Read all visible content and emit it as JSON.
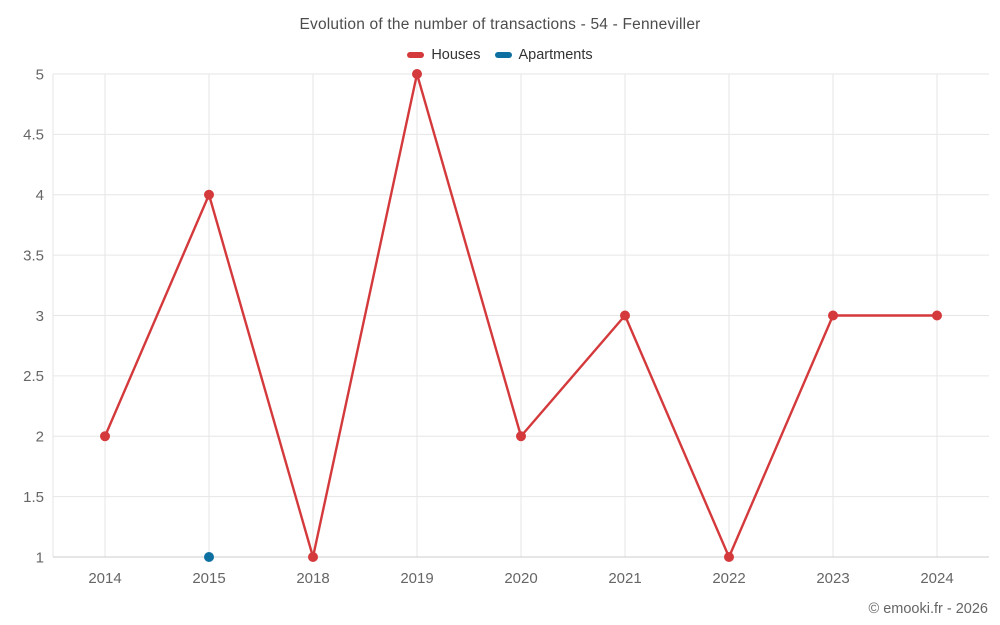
{
  "header": {
    "title": "Evolution of the number of transactions - 54 - Fenneviller"
  },
  "footer": {
    "copyright": "© emooki.fr - 2026"
  },
  "colors": {
    "houses": "#d4393c",
    "apartments": "#0e70a0",
    "gridline": "#e6e6e6",
    "axis_line": "#cccccc",
    "tick_label": "#666666",
    "title_text": "#4d4d4d",
    "legend_text": "#333333",
    "background": "#ffffff"
  },
  "chart_data": {
    "type": "line",
    "title": "Evolution of the number of transactions - 54 - Fenneviller",
    "categories": [
      "2014",
      "2015",
      "2018",
      "2019",
      "2020",
      "2021",
      "2022",
      "2023",
      "2024"
    ],
    "series": [
      {
        "name": "Houses",
        "color": "#d4393c",
        "values": [
          2,
          4,
          1,
          5,
          2,
          3,
          1,
          3,
          3
        ]
      },
      {
        "name": "Apartments",
        "color": "#0e70a0",
        "values": [
          null,
          1,
          null,
          null,
          null,
          null,
          null,
          null,
          null
        ]
      }
    ],
    "xlabel": "",
    "ylabel": "",
    "ylim": [
      1,
      5
    ],
    "yticks": [
      1,
      1.5,
      2,
      2.5,
      3,
      3.5,
      4,
      4.5,
      5
    ],
    "grid": true,
    "legend_position": "top",
    "marker_radius": 5,
    "line_width": 2.4
  }
}
